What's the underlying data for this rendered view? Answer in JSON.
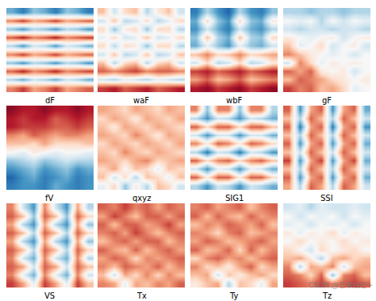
{
  "watermark": "CSDN @芒果很芒~",
  "chart_data": [
    {
      "type": "heatmap",
      "title": "dF",
      "tick_labels": false,
      "zlim": [
        -1,
        1
      ],
      "z": [
        [
          -0.5,
          -0.7,
          -0.4,
          -0.5,
          -0.7,
          -0.4,
          -0.5,
          -0.7
        ],
        [
          0.5,
          0.7,
          0.4,
          0.5,
          0.7,
          0.4,
          0.5,
          0.6
        ],
        [
          -0.4,
          -0.6,
          -0.3,
          -0.4,
          -0.6,
          -0.3,
          -0.4,
          -0.6
        ],
        [
          0.6,
          0.8,
          0.5,
          0.6,
          0.8,
          0.5,
          0.6,
          0.7
        ],
        [
          -0.3,
          -0.6,
          -0.2,
          -0.3,
          -0.6,
          -0.2,
          -0.3,
          -0.5
        ],
        [
          0.5,
          0.7,
          0.4,
          0.5,
          0.7,
          0.4,
          0.5,
          0.6
        ],
        [
          -0.4,
          -0.6,
          -0.3,
          -0.4,
          -0.6,
          -0.3,
          -0.4,
          -0.6
        ],
        [
          0.6,
          0.8,
          0.5,
          0.6,
          0.8,
          0.5,
          0.6,
          0.7
        ],
        [
          -0.3,
          -0.5,
          -0.2,
          -0.3,
          -0.5,
          -0.2,
          -0.3,
          -0.5
        ],
        [
          0.5,
          0.7,
          0.4,
          0.5,
          0.7,
          0.4,
          0.5,
          0.6
        ]
      ]
    },
    {
      "type": "heatmap",
      "title": "waF",
      "tick_labels": false,
      "zlim": [
        -1,
        1
      ],
      "z": [
        [
          0.3,
          -0.2,
          0.2,
          0.3,
          -0.3,
          0.1,
          0.3,
          -0.2
        ],
        [
          -0.2,
          0.3,
          -0.3,
          -0.2,
          0.2,
          -0.3,
          -0.1,
          0.2
        ],
        [
          0.2,
          -0.4,
          0.1,
          0.2,
          -0.4,
          0.2,
          0.2,
          -0.3
        ],
        [
          -0.1,
          0.2,
          -0.2,
          -0.1,
          0.3,
          -0.2,
          -0.1,
          0.2
        ],
        [
          0.2,
          -0.3,
          0.2,
          0.1,
          -0.4,
          0.2,
          0.2,
          -0.3
        ],
        [
          -0.2,
          0.3,
          -0.3,
          -0.2,
          0.3,
          -0.3,
          -0.2,
          0.3
        ],
        [
          0.3,
          -0.3,
          0.2,
          0.3,
          -0.3,
          0.2,
          0.3,
          -0.2
        ],
        [
          0.6,
          0.5,
          0.6,
          0.7,
          0.5,
          0.6,
          0.6,
          0.5
        ],
        [
          -0.2,
          -0.3,
          -0.1,
          -0.2,
          -0.3,
          -0.1,
          -0.2,
          -0.3
        ],
        [
          0.7,
          0.8,
          0.6,
          0.7,
          0.8,
          0.6,
          0.7,
          0.8
        ]
      ]
    },
    {
      "type": "heatmap",
      "title": "wbF",
      "tick_labels": false,
      "zlim": [
        -1,
        1
      ],
      "z": [
        [
          -0.7,
          -0.3,
          -0.6,
          -0.8,
          -0.3,
          -0.6,
          -0.7,
          -0.4
        ],
        [
          -0.5,
          0.2,
          -0.4,
          -0.6,
          0.2,
          -0.4,
          -0.5,
          0.1
        ],
        [
          -0.6,
          -0.2,
          -0.5,
          -0.7,
          -0.2,
          -0.5,
          -0.6,
          -0.3
        ],
        [
          -0.4,
          0.3,
          -0.3,
          -0.5,
          0.3,
          -0.3,
          -0.4,
          0.2
        ],
        [
          -0.5,
          -0.1,
          -0.4,
          -0.6,
          -0.1,
          -0.4,
          -0.5,
          -0.2
        ],
        [
          0.3,
          0.5,
          0.2,
          0.3,
          0.5,
          0.2,
          0.3,
          0.4
        ],
        [
          -0.2,
          0.2,
          -0.3,
          -0.2,
          0.2,
          -0.3,
          -0.2,
          0.1
        ],
        [
          0.7,
          0.8,
          0.6,
          0.7,
          0.8,
          0.6,
          0.7,
          0.8
        ],
        [
          0.4,
          0.6,
          0.3,
          0.4,
          0.6,
          0.3,
          0.4,
          0.5
        ],
        [
          0.8,
          0.9,
          0.7,
          0.8,
          0.9,
          0.7,
          0.8,
          0.9
        ]
      ]
    },
    {
      "type": "heatmap",
      "title": "gF",
      "tick_labels": false,
      "zlim": [
        -1,
        1
      ],
      "z": [
        [
          -0.3,
          -0.3,
          -0.4,
          -0.3,
          -0.3,
          -0.4,
          -0.3,
          -0.3
        ],
        [
          0.0,
          -0.1,
          0.0,
          -0.3,
          0.0,
          -0.2,
          0.0,
          -0.1
        ],
        [
          -0.2,
          -0.3,
          -0.2,
          -0.2,
          -0.3,
          -0.2,
          -0.2,
          -0.3
        ],
        [
          0.1,
          0.0,
          -0.1,
          0.0,
          0.1,
          -0.2,
          0.0,
          0.1
        ],
        [
          0.3,
          -0.1,
          0.0,
          0.2,
          -0.2,
          0.0,
          0.1,
          -0.2
        ],
        [
          0.5,
          0.3,
          0.1,
          0.0,
          -0.1,
          0.0,
          -0.2,
          0.0
        ],
        [
          -0.2,
          0.5,
          0.2,
          -0.1,
          0.1,
          0.0,
          0.1,
          0.0
        ],
        [
          0.6,
          0.4,
          0.6,
          0.1,
          0.0,
          0.1,
          -0.2,
          0.0
        ],
        [
          0.3,
          0.6,
          0.5,
          0.4,
          0.2,
          0.1,
          0.0,
          0.1
        ],
        [
          0.7,
          0.5,
          0.6,
          0.3,
          0.4,
          0.2,
          -0.1,
          0.0
        ]
      ]
    },
    {
      "type": "heatmap",
      "title": "fV",
      "tick_labels": false,
      "zlim": [
        -1,
        1
      ],
      "z": [
        [
          0.9,
          0.8,
          0.8,
          0.9,
          0.8,
          0.8,
          0.9,
          0.8
        ],
        [
          0.8,
          0.7,
          0.8,
          0.8,
          0.6,
          0.7,
          0.8,
          0.7
        ],
        [
          0.8,
          0.7,
          0.7,
          0.7,
          0.6,
          0.6,
          0.7,
          0.6
        ],
        [
          0.5,
          0.4,
          0.6,
          0.5,
          0.4,
          0.5,
          0.5,
          0.4
        ],
        [
          0.3,
          0.3,
          0.2,
          0.4,
          0.2,
          0.2,
          0.2,
          0.3
        ],
        [
          0.0,
          -0.1,
          0.1,
          0.0,
          -0.1,
          0.0,
          0.0,
          -0.1
        ],
        [
          -0.4,
          -0.3,
          -0.2,
          -0.4,
          -0.3,
          -0.2,
          -0.3,
          -0.3
        ],
        [
          -0.6,
          -0.5,
          -0.4,
          -0.6,
          -0.5,
          -0.4,
          -0.6,
          -0.5
        ],
        [
          -0.8,
          -0.6,
          -0.5,
          -0.7,
          -0.6,
          -0.5,
          -0.7,
          -0.6
        ],
        [
          -0.7,
          -0.6,
          -0.6,
          -0.7,
          -0.5,
          -0.6,
          -0.7,
          -0.6
        ]
      ]
    },
    {
      "type": "heatmap",
      "title": "qxyz",
      "tick_labels": false,
      "zlim": [
        -1,
        1
      ],
      "z": [
        [
          0.4,
          0.3,
          0.2,
          0.4,
          0.3,
          0.2,
          0.4,
          0.3
        ],
        [
          0.2,
          0.4,
          0.3,
          0.1,
          0.4,
          0.3,
          0.2,
          0.4
        ],
        [
          0.3,
          0.1,
          0.4,
          0.3,
          0.2,
          0.4,
          0.3,
          0.2
        ],
        [
          0.4,
          0.3,
          0.2,
          0.5,
          0.3,
          0.1,
          0.4,
          0.3
        ],
        [
          0.2,
          0.4,
          0.3,
          0.2,
          0.4,
          0.3,
          0.2,
          0.4
        ],
        [
          0.3,
          0.2,
          0.5,
          0.3,
          0.2,
          0.4,
          0.3,
          0.2
        ],
        [
          0.4,
          0.3,
          0.2,
          0.4,
          0.5,
          0.2,
          0.3,
          0.4
        ],
        [
          0.2,
          0.4,
          0.0,
          0.3,
          0.2,
          -0.1,
          0.3,
          0.2
        ],
        [
          0.3,
          -0.2,
          0.2,
          -0.3,
          0.3,
          0.2,
          -0.1,
          0.3
        ],
        [
          -0.1,
          0.2,
          -0.4,
          0.1,
          -0.3,
          0.3,
          0.2,
          -0.2
        ]
      ]
    },
    {
      "type": "heatmap",
      "title": "SIG1",
      "tick_labels": false,
      "zlim": [
        -1,
        1
      ],
      "z": [
        [
          0.5,
          -0.4,
          0.5,
          0.5,
          -0.4,
          0.5,
          0.5,
          -0.3
        ],
        [
          -0.3,
          -0.6,
          -0.2,
          -0.3,
          -0.6,
          -0.2,
          -0.3,
          -0.5
        ],
        [
          0.6,
          0.2,
          0.6,
          0.6,
          0.2,
          0.6,
          0.6,
          0.3
        ],
        [
          -0.2,
          -0.6,
          -0.2,
          -0.2,
          -0.6,
          -0.2,
          -0.2,
          -0.5
        ],
        [
          0.5,
          0.1,
          0.6,
          0.5,
          0.1,
          0.6,
          0.5,
          0.2
        ],
        [
          -0.3,
          -0.7,
          -0.2,
          -0.3,
          -0.7,
          -0.2,
          -0.3,
          -0.6
        ],
        [
          0.6,
          0.2,
          0.5,
          0.6,
          0.2,
          0.5,
          0.6,
          0.3
        ],
        [
          -0.2,
          -0.6,
          -0.1,
          -0.2,
          -0.6,
          -0.1,
          -0.2,
          -0.5
        ],
        [
          0.6,
          0.1,
          0.6,
          0.6,
          0.1,
          0.6,
          0.6,
          0.2
        ],
        [
          -0.3,
          -0.6,
          -0.2,
          -0.3,
          -0.6,
          -0.2,
          -0.3,
          -0.5
        ]
      ]
    },
    {
      "type": "heatmap",
      "title": "SSI",
      "tick_labels": false,
      "zlim": [
        -1,
        1
      ],
      "z": [
        [
          0.6,
          -0.6,
          0.4,
          0.6,
          -0.6,
          0.4,
          0.6,
          -0.5
        ],
        [
          0.3,
          -0.3,
          0.6,
          0.3,
          -0.3,
          0.6,
          0.3,
          -0.2
        ],
        [
          0.6,
          -0.7,
          0.4,
          0.6,
          -0.7,
          0.4,
          0.6,
          -0.6
        ],
        [
          0.3,
          -0.3,
          0.6,
          0.3,
          -0.3,
          0.6,
          0.3,
          -0.2
        ],
        [
          0.6,
          -0.6,
          0.4,
          0.6,
          -0.6,
          0.4,
          0.6,
          -0.5
        ],
        [
          0.3,
          -0.2,
          0.6,
          0.3,
          -0.2,
          0.6,
          0.3,
          -0.2
        ],
        [
          0.7,
          -0.6,
          0.4,
          0.7,
          -0.6,
          0.4,
          0.7,
          -0.5
        ],
        [
          0.3,
          -0.3,
          0.6,
          0.3,
          -0.3,
          0.6,
          0.3,
          -0.2
        ],
        [
          0.6,
          -0.6,
          0.4,
          0.6,
          -0.6,
          0.4,
          0.6,
          -0.5
        ],
        [
          0.4,
          -0.3,
          0.6,
          0.4,
          -0.3,
          0.6,
          0.4,
          -0.2
        ]
      ]
    },
    {
      "type": "heatmap",
      "title": "VS",
      "tick_labels": false,
      "zlim": [
        -1,
        1
      ],
      "z": [
        [
          0.5,
          -0.2,
          -0.6,
          0.5,
          -0.2,
          -0.6,
          0.4,
          -0.3
        ],
        [
          0.6,
          0.3,
          -0.4,
          0.6,
          0.3,
          -0.4,
          0.6,
          0.2
        ],
        [
          0.4,
          -0.3,
          -0.6,
          0.4,
          -0.3,
          -0.6,
          0.4,
          -0.4
        ],
        [
          0.6,
          0.3,
          -0.3,
          0.6,
          0.3,
          -0.3,
          0.6,
          0.2
        ],
        [
          0.4,
          -0.3,
          -0.6,
          0.4,
          -0.3,
          -0.6,
          0.4,
          -0.4
        ],
        [
          0.6,
          0.3,
          -0.3,
          0.6,
          0.3,
          -0.3,
          0.6,
          0.2
        ],
        [
          0.5,
          -0.2,
          -0.5,
          0.5,
          -0.2,
          -0.5,
          0.5,
          -0.3
        ],
        [
          0.6,
          0.4,
          -0.2,
          0.6,
          0.4,
          -0.2,
          0.6,
          0.3
        ],
        [
          0.5,
          -0.1,
          -0.5,
          0.5,
          -0.1,
          -0.5,
          0.5,
          -0.2
        ],
        [
          0.7,
          0.4,
          -0.1,
          0.7,
          0.4,
          -0.1,
          0.7,
          0.3
        ]
      ]
    },
    {
      "type": "heatmap",
      "title": "Tx",
      "tick_labels": false,
      "zlim": [
        -1,
        1
      ],
      "z": [
        [
          0.6,
          0.5,
          0.7,
          0.5,
          0.6,
          0.4,
          0.6,
          0.5
        ],
        [
          0.4,
          0.7,
          0.5,
          0.3,
          0.6,
          0.6,
          0.4,
          0.6
        ],
        [
          0.6,
          0.3,
          0.6,
          0.6,
          0.4,
          0.5,
          0.7,
          0.4
        ],
        [
          0.5,
          0.6,
          0.4,
          0.7,
          0.5,
          0.3,
          0.5,
          0.6
        ],
        [
          0.3,
          0.5,
          0.6,
          0.4,
          0.6,
          0.6,
          0.3,
          0.5
        ],
        [
          0.6,
          0.4,
          0.3,
          0.6,
          0.3,
          0.5,
          0.6,
          0.4
        ],
        [
          0.4,
          0.6,
          0.5,
          0.2,
          0.5,
          0.4,
          0.5,
          0.6
        ],
        [
          0.5,
          0.3,
          0.6,
          0.5,
          0.4,
          0.6,
          0.3,
          0.5
        ],
        [
          0.3,
          -0.2,
          0.4,
          0.2,
          0.5,
          0.2,
          0.5,
          0.3
        ],
        [
          0.5,
          0.4,
          -0.1,
          0.4,
          0.3,
          0.5,
          0.4,
          0.6
        ]
      ]
    },
    {
      "type": "heatmap",
      "title": "Ty",
      "tick_labels": false,
      "zlim": [
        -1,
        1
      ],
      "z": [
        [
          0.5,
          0.6,
          0.4,
          0.5,
          0.6,
          0.3,
          0.5,
          0.6
        ],
        [
          0.6,
          0.3,
          0.6,
          0.4,
          0.3,
          0.6,
          0.4,
          0.5
        ],
        [
          0.3,
          0.5,
          0.4,
          0.6,
          0.5,
          0.4,
          0.6,
          0.3
        ],
        [
          0.5,
          0.4,
          0.2,
          0.5,
          0.6,
          0.3,
          0.4,
          0.5
        ],
        [
          0.4,
          0.6,
          0.5,
          0.3,
          0.4,
          0.5,
          0.6,
          0.4
        ],
        [
          0.6,
          0.3,
          0.4,
          0.6,
          0.2,
          0.6,
          0.3,
          0.5
        ],
        [
          0.2,
          0.5,
          0.6,
          0.4,
          0.5,
          0.3,
          0.5,
          0.6
        ],
        [
          0.5,
          0.2,
          0.3,
          0.1,
          0.4,
          0.6,
          0.2,
          0.4
        ],
        [
          0.3,
          0.4,
          -0.2,
          0.3,
          0.1,
          0.3,
          0.4,
          0.2
        ],
        [
          0.1,
          0.3,
          0.4,
          -0.3,
          0.3,
          0.2,
          -0.1,
          0.4
        ]
      ]
    },
    {
      "type": "heatmap",
      "title": "Tz",
      "tick_labels": false,
      "zlim": [
        -1,
        1
      ],
      "z": [
        [
          -0.2,
          -0.1,
          -0.3,
          -0.1,
          -0.2,
          -0.2,
          -0.1,
          -0.2
        ],
        [
          0.0,
          -0.2,
          0.0,
          -0.1,
          0.0,
          -0.2,
          0.0,
          -0.1
        ],
        [
          -0.1,
          0.0,
          -0.2,
          0.0,
          -0.1,
          0.0,
          -0.2,
          0.0
        ],
        [
          0.1,
          -0.1,
          0.1,
          0.0,
          0.2,
          -0.1,
          0.1,
          0.0
        ],
        [
          0.0,
          0.2,
          0.0,
          0.1,
          0.0,
          0.2,
          0.0,
          0.1
        ],
        [
          0.2,
          0.0,
          -0.2,
          0.2,
          0.0,
          0.1,
          0.2,
          0.0
        ],
        [
          0.3,
          0.4,
          0.1,
          -0.3,
          0.3,
          0.4,
          0.2,
          0.3
        ],
        [
          0.5,
          -0.3,
          0.4,
          0.3,
          0.5,
          -0.2,
          0.3,
          0.4
        ],
        [
          0.6,
          0.5,
          0.2,
          0.6,
          -0.4,
          0.5,
          0.6,
          0.3
        ],
        [
          0.7,
          0.6,
          0.5,
          0.7,
          0.5,
          0.6,
          0.7,
          0.6
        ]
      ]
    }
  ]
}
